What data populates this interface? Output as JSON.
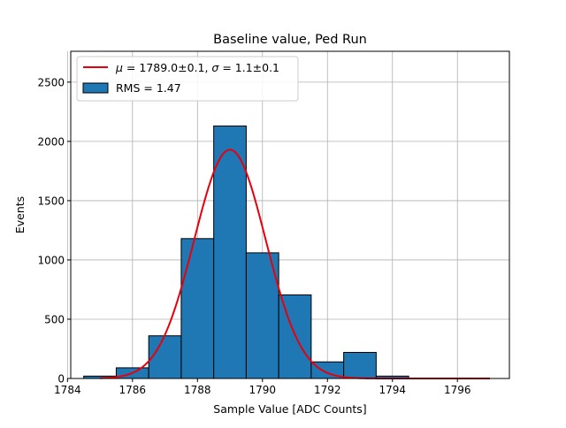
{
  "chart_data": {
    "type": "bar",
    "title": "Baseline value, Ped Run",
    "xlabel": "Sample Value [ADC Counts]",
    "ylabel": "Events",
    "xlim": [
      1784.1,
      1797.6
    ],
    "ylim": [
      0,
      2760
    ],
    "xticks": [
      1784,
      1786,
      1788,
      1790,
      1792,
      1794,
      1796
    ],
    "yticks": [
      0,
      500,
      1000,
      1500,
      2000,
      2500
    ],
    "grid": true,
    "legend_position": "top-left",
    "bin_edges": [
      1784.5,
      1785.5,
      1786.5,
      1787.5,
      1788.5,
      1789.5,
      1790.5,
      1791.5,
      1792.5,
      1793.5,
      1794.5
    ],
    "counts": [
      20,
      90,
      360,
      1180,
      2130,
      1060,
      705,
      140,
      220,
      20
    ],
    "histogram_color": "#1f77b4",
    "histogram_label": "RMS = 1.47",
    "fit": {
      "label_mu_symbol": "μ",
      "label_mu": " = 1789.0±0.1, ",
      "label_sigma_symbol": "σ",
      "label_sigma": " = 1.1±0.1",
      "mu": 1789.0,
      "sigma": 1.1,
      "amplitude": 1930,
      "x_range": [
        1785,
        1797
      ],
      "color": "#e8000b"
    }
  }
}
